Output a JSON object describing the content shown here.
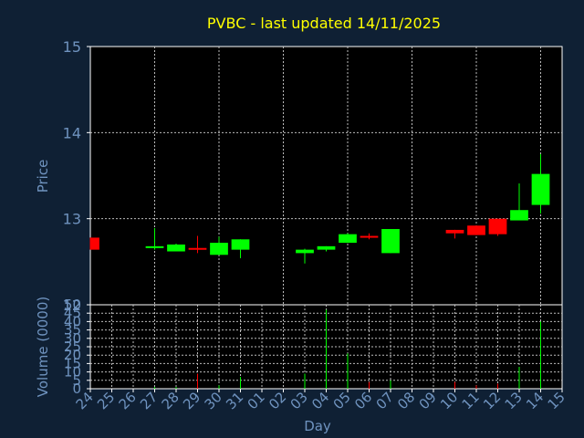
{
  "chart_data": {
    "type": "candlestick",
    "title": "PVBC - last updated 14/11/2025",
    "xlabel": "Day",
    "price_panel": {
      "ylabel": "Price",
      "ylim": [
        12,
        15
      ],
      "yticks": [
        "12",
        "13",
        "14",
        "15"
      ],
      "grid": true
    },
    "volume_panel": {
      "ylabel": "Volume (0000)",
      "ylim": [
        0,
        50
      ],
      "yticks": [
        "0",
        "5",
        "10",
        "15",
        "20",
        "25",
        "30",
        "35",
        "40",
        "45",
        "50"
      ],
      "grid": true
    },
    "x_ticks": [
      "24",
      "25",
      "26",
      "27",
      "28",
      "29",
      "30",
      "31",
      "01",
      "02",
      "03",
      "04",
      "05",
      "06",
      "07",
      "08",
      "09",
      "10",
      "11",
      "12",
      "13",
      "14",
      "15"
    ],
    "colors": {
      "up": "#00ff00",
      "down": "#ff0000",
      "title": "#ffff00",
      "axis_text": "#6f93bf",
      "background": "#0f2034",
      "plot_bg": "#000000"
    },
    "candles": [
      {
        "day": "24",
        "open": 12.78,
        "high": 12.78,
        "low": 12.64,
        "close": 12.64,
        "volume": 0
      },
      {
        "day": "27",
        "open": 12.66,
        "high": 12.89,
        "low": 12.64,
        "close": 12.68,
        "volume": 1
      },
      {
        "day": "28",
        "open": 12.62,
        "high": 12.71,
        "low": 12.62,
        "close": 12.7,
        "volume": 1
      },
      {
        "day": "29",
        "open": 12.66,
        "high": 12.8,
        "low": 12.6,
        "close": 12.64,
        "volume": 9
      },
      {
        "day": "30",
        "open": 12.58,
        "high": 12.79,
        "low": 12.58,
        "close": 12.72,
        "volume": 2
      },
      {
        "day": "31",
        "open": 12.64,
        "high": 12.76,
        "low": 12.54,
        "close": 12.76,
        "volume": 7
      },
      {
        "day": "03",
        "open": 12.6,
        "high": 12.65,
        "low": 12.48,
        "close": 12.64,
        "volume": 9
      },
      {
        "day": "04",
        "open": 12.64,
        "high": 12.68,
        "low": 12.62,
        "close": 12.68,
        "volume": 47
      },
      {
        "day": "05",
        "open": 12.72,
        "high": 12.83,
        "low": 12.72,
        "close": 12.82,
        "volume": 21
      },
      {
        "day": "06",
        "open": 12.8,
        "high": 12.83,
        "low": 12.76,
        "close": 12.78,
        "volume": 4
      },
      {
        "day": "07",
        "open": 12.6,
        "high": 12.88,
        "low": 12.6,
        "close": 12.88,
        "volume": 5
      },
      {
        "day": "10",
        "open": 12.87,
        "high": 12.87,
        "low": 12.77,
        "close": 12.83,
        "volume": 4
      },
      {
        "day": "11",
        "open": 12.92,
        "high": 12.92,
        "low": 12.81,
        "close": 12.81,
        "volume": 2
      },
      {
        "day": "12",
        "open": 13.0,
        "high": 13.0,
        "low": 12.8,
        "close": 12.82,
        "volume": 3
      },
      {
        "day": "13",
        "open": 12.98,
        "high": 13.41,
        "low": 12.98,
        "close": 13.1,
        "volume": 13
      },
      {
        "day": "14",
        "open": 13.16,
        "high": 13.75,
        "low": 13.06,
        "close": 13.52,
        "volume": 40
      }
    ]
  }
}
